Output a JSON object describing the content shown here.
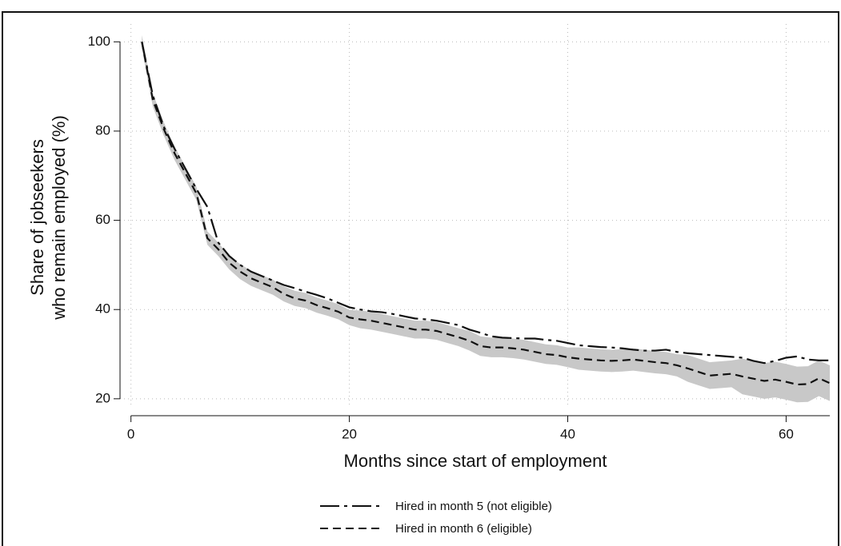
{
  "chart_data": {
    "type": "line",
    "x_label": "Months since start of employment",
    "y_label": [
      "Share of jobseekers",
      "who remain employed (%)"
    ],
    "x": [
      1,
      2,
      3,
      4,
      5,
      6,
      7,
      8,
      9,
      10,
      11,
      12,
      13,
      14,
      15,
      16,
      17,
      18,
      19,
      20,
      21,
      22,
      23,
      24,
      25,
      26,
      27,
      28,
      29,
      30,
      31,
      32,
      33,
      34,
      35,
      36,
      37,
      38,
      39,
      40,
      41,
      42,
      43,
      44,
      45,
      46,
      47,
      48,
      49,
      50,
      51,
      52,
      53,
      54,
      55,
      56,
      57,
      58,
      59,
      60,
      61,
      62,
      63,
      64
    ],
    "series": [
      {
        "name": "Hired in month 5 (not eligible)",
        "color": "#111111",
        "dash": "24 6 4 6",
        "values": [
          100,
          88,
          81,
          76,
          71.5,
          67,
          63,
          55,
          52,
          50,
          48.5,
          47.5,
          46.5,
          45.5,
          44.8,
          44,
          43.3,
          42.5,
          41.5,
          40.5,
          40,
          39.6,
          39.4,
          39,
          38.5,
          38,
          37.8,
          37.5,
          37,
          36.5,
          35.5,
          34.8,
          34,
          33.7,
          33.6,
          33.5,
          33.5,
          33.2,
          33,
          32.5,
          32,
          31.8,
          31.6,
          31.5,
          31.3,
          31,
          30.8,
          30.8,
          31,
          30.5,
          30.2,
          30,
          29.8,
          29.6,
          29.4,
          29.2,
          28.5,
          28,
          28.5,
          29.2,
          29.5,
          28.8,
          28.6,
          28.6
        ]
      },
      {
        "name": "Hired in month 6 (eligible)",
        "color": "#111111",
        "dash": "10 6",
        "values": [
          100,
          87,
          80.5,
          75,
          70.5,
          66,
          56,
          53.5,
          50.5,
          48.5,
          47,
          46,
          45,
          43.5,
          42.5,
          42,
          41,
          40.3,
          39.5,
          38.2,
          37.8,
          37.5,
          37,
          36.5,
          36,
          35.5,
          35.5,
          35.2,
          34.5,
          33.8,
          33,
          31.8,
          31.5,
          31.5,
          31.3,
          31,
          30.5,
          30,
          29.8,
          29.3,
          29,
          28.8,
          28.6,
          28.5,
          28.6,
          28.8,
          28.5,
          28.2,
          28,
          27.5,
          26.8,
          26,
          25.2,
          25.4,
          25.6,
          25,
          24.5,
          24,
          24.3,
          23.8,
          23.2,
          23.3,
          24.6,
          23.5
        ],
        "ci_lower": [
          98.5,
          85.5,
          79,
          73.5,
          69,
          64.5,
          54.5,
          52,
          49,
          46.8,
          45.3,
          44.3,
          43.3,
          41.8,
          40.8,
          40.3,
          39.3,
          38.6,
          37.8,
          36.5,
          35.8,
          35.5,
          35,
          34.5,
          34,
          33.5,
          33.5,
          33.2,
          32.5,
          31.8,
          30.8,
          29.6,
          29.3,
          29.3,
          29.1,
          28.8,
          28.3,
          27.8,
          27.6,
          27.1,
          26.5,
          26.3,
          26.1,
          26,
          26.1,
          26.3,
          26,
          25.7,
          25.5,
          25,
          23.8,
          23,
          22.2,
          22.4,
          22.6,
          21,
          20.5,
          20,
          20.3,
          19.8,
          19.2,
          19.3,
          20.6,
          19.5
        ],
        "ci_upper": [
          101.5,
          88.5,
          82,
          76.5,
          72,
          67.5,
          57.5,
          55,
          52,
          50.2,
          48.7,
          47.7,
          46.7,
          45.2,
          44.2,
          43.7,
          42.7,
          42,
          41.2,
          39.9,
          39.8,
          39.5,
          39,
          38.5,
          38,
          37.5,
          37.5,
          37.2,
          36.5,
          35.8,
          35.2,
          34,
          33.7,
          33.7,
          33.5,
          33.2,
          32.7,
          32.2,
          32,
          31.5,
          31.5,
          31.3,
          31.1,
          31,
          31.1,
          31.3,
          31,
          30.7,
          30.5,
          30,
          29.8,
          29,
          28.2,
          28.4,
          28.6,
          29,
          28.5,
          28,
          28.3,
          27.8,
          27.2,
          27.3,
          28.6,
          27.5
        ],
        "ci_color": "#c8c8c8"
      }
    ],
    "xlim": [
      -1,
      64
    ],
    "xticks": [
      0,
      20,
      40,
      60
    ],
    "ylim": [
      18,
      104
    ],
    "yticks": [
      20,
      40,
      60,
      80,
      100
    ],
    "grid": true
  }
}
